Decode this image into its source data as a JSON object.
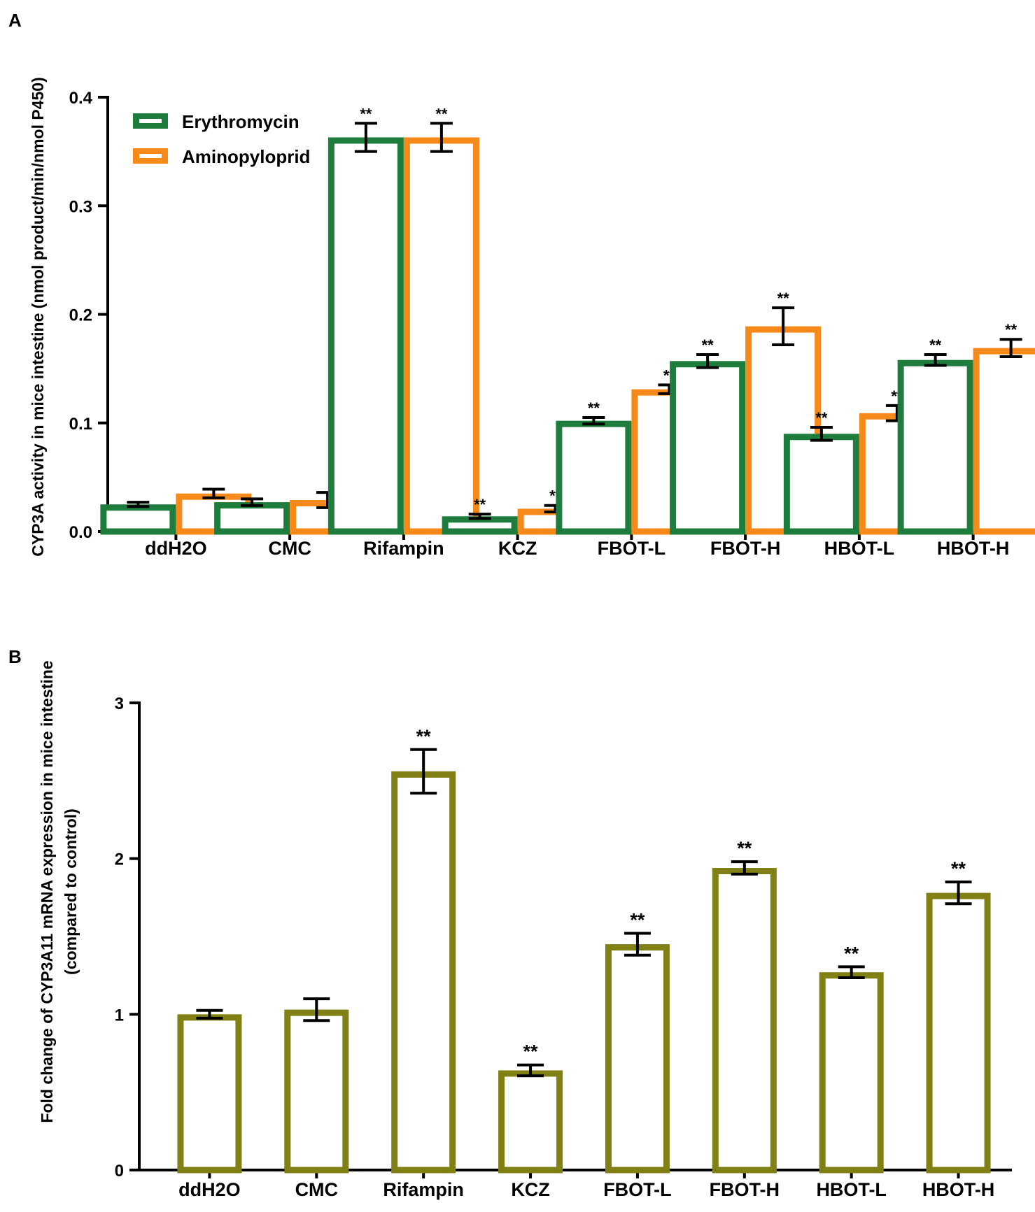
{
  "figure": {
    "panels": [
      "A",
      "B"
    ]
  },
  "colors": {
    "erythromycin": "#1e7d3c",
    "aminopyloprid": "#f5891a",
    "mrna": "#808014",
    "axis": "#000000"
  },
  "chart_data": [
    {
      "panel": "A",
      "type": "bar",
      "title": "",
      "xlabel": "",
      "ylabel": "CYP3A activity in mice intestine (nmol product/min/nmol P450)",
      "ylim": [
        0,
        0.4
      ],
      "yticks": [
        0.0,
        0.1,
        0.2,
        0.3,
        0.4
      ],
      "ytick_labels": [
        "0.0",
        "0.1",
        "0.2",
        "0.3",
        "0.4"
      ],
      "categories": [
        "ddH2O",
        "CMC",
        "Rifampin",
        "KCZ",
        "FBOT-L",
        "FBOT-H",
        "HBOT-L",
        "HBOT-H"
      ],
      "legend": {
        "position": "top-left",
        "entries": [
          "Erythromycin",
          "Aminopyloprid"
        ]
      },
      "series": [
        {
          "name": "Erythromycin",
          "values": [
            0.025,
            0.027,
            0.363,
            0.014,
            0.102,
            0.157,
            0.09,
            0.158
          ],
          "errors": [
            0.002,
            0.003,
            0.013,
            0.002,
            0.003,
            0.006,
            0.006,
            0.005
          ],
          "significance": [
            "",
            "",
            "**",
            "**",
            "**",
            "**",
            "**",
            "**"
          ]
        },
        {
          "name": "Aminopyloprid",
          "values": [
            0.035,
            0.029,
            0.363,
            0.021,
            0.131,
            0.189,
            0.109,
            0.169
          ],
          "errors": [
            0.004,
            0.007,
            0.013,
            0.003,
            0.004,
            0.017,
            0.007,
            0.008
          ],
          "significance": [
            "",
            "",
            "**",
            "**",
            "**",
            "**",
            "**",
            "**"
          ]
        }
      ]
    },
    {
      "panel": "B",
      "type": "bar",
      "title": "",
      "xlabel": "",
      "ylabel_line1": "Fold change of CYP3A11 mRNA expression in mice intestine",
      "ylabel_line2": "(compared to control)",
      "ylim": [
        0,
        3
      ],
      "yticks": [
        0,
        1,
        2,
        3
      ],
      "ytick_labels": [
        "0",
        "1",
        "2",
        "3"
      ],
      "categories": [
        "ddH2O",
        "CMC",
        "Rifampin",
        "KCZ",
        "FBOT-L",
        "FBOT-H",
        "HBOT-L",
        "HBOT-H"
      ],
      "series": [
        {
          "name": "CYP3A11 mRNA",
          "values": [
            1.0,
            1.03,
            2.56,
            0.64,
            1.45,
            1.94,
            1.27,
            1.78
          ],
          "errors": [
            0.025,
            0.07,
            0.14,
            0.035,
            0.07,
            0.04,
            0.035,
            0.07
          ],
          "significance": [
            "",
            "",
            "**",
            "**",
            "**",
            "**",
            "**",
            "**"
          ]
        }
      ]
    }
  ]
}
